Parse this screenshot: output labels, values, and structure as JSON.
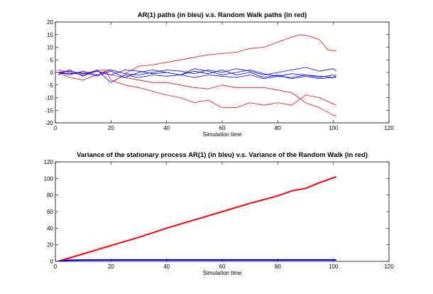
{
  "chart_data": [
    {
      "type": "line",
      "title": "AR(1) paths (in bleu) v.s. Random Walk paths (in red)",
      "xlabel": "Simulation time",
      "ylabel": "",
      "xlim": [
        0,
        120
      ],
      "ylim": [
        -20,
        20
      ],
      "xticks": [
        0,
        20,
        40,
        60,
        80,
        100,
        120
      ],
      "yticks": [
        -20,
        -15,
        -10,
        -5,
        0,
        5,
        10,
        15,
        20
      ],
      "grid": false,
      "series": [
        {
          "color": "#ff0000",
          "x": [
            1,
            5,
            10,
            15,
            20,
            25,
            30,
            35,
            40,
            45,
            50,
            55,
            60,
            65,
            70,
            75,
            80,
            85,
            88,
            91,
            95,
            98,
            101
          ],
          "y": [
            0,
            0.5,
            -0.5,
            0.8,
            1,
            -0.5,
            2.5,
            3,
            4,
            5,
            6,
            7,
            7.5,
            8,
            9.5,
            10,
            12,
            14,
            15,
            14.5,
            13,
            9,
            8.5
          ]
        },
        {
          "color": "#ff0000",
          "x": [
            1,
            5,
            10,
            15,
            18,
            20,
            25,
            30,
            35,
            40,
            45,
            50,
            55,
            60,
            65,
            70,
            75,
            80,
            85,
            90,
            95,
            100,
            101
          ],
          "y": [
            0,
            -2,
            -3,
            -1,
            0.5,
            -3,
            -5,
            -6,
            -7.5,
            -9,
            -10,
            -12,
            -11,
            -14,
            -14,
            -12,
            -13,
            -12,
            -13,
            -9,
            -10,
            -12.5,
            -13
          ]
        },
        {
          "color": "#ff0000",
          "x": [
            1,
            5,
            10,
            15,
            20,
            25,
            30,
            35,
            40,
            45,
            50,
            55,
            60,
            65,
            70,
            75,
            80,
            85,
            90,
            95,
            100,
            101
          ],
          "y": [
            0,
            0.5,
            -0.5,
            0.5,
            -1,
            -2,
            -3,
            -4,
            -4,
            -5,
            -6,
            -6.5,
            -5,
            -6,
            -6,
            -6,
            -7,
            -8,
            -12,
            -14,
            -17,
            -17
          ]
        },
        {
          "color": "#0000ff",
          "x": [
            1,
            5,
            10,
            15,
            20,
            25,
            30,
            35,
            40,
            45,
            50,
            55,
            60,
            65,
            70,
            75,
            80,
            85,
            90,
            95,
            100,
            101
          ],
          "y": [
            0,
            -1,
            0.5,
            -1,
            1,
            -0.5,
            -1,
            0,
            1,
            0.5,
            -0.5,
            1,
            0,
            1.5,
            0.5,
            -1,
            0,
            1,
            2,
            0.5,
            1.5,
            0.5
          ]
        },
        {
          "color": "#0000ff",
          "x": [
            1,
            5,
            10,
            15,
            20,
            25,
            30,
            35,
            40,
            45,
            50,
            55,
            60,
            65,
            70,
            75,
            80,
            85,
            90,
            95,
            100,
            101
          ],
          "y": [
            1,
            0,
            -1,
            0.5,
            -1,
            1,
            0.5,
            -0.5,
            0,
            -1,
            1.5,
            0.5,
            -1,
            0,
            1,
            -0.5,
            -1.5,
            -0.5,
            -1,
            -2,
            -1,
            -2
          ]
        },
        {
          "color": "#0000ff",
          "x": [
            1,
            5,
            10,
            15,
            20,
            25,
            30,
            35,
            40,
            45,
            50,
            55,
            60,
            65,
            70,
            75,
            80,
            85,
            90,
            95,
            100,
            101
          ],
          "y": [
            -1,
            1,
            -1.5,
            1,
            -4,
            -1,
            -2,
            -1,
            -1.5,
            -1,
            -2,
            -1,
            -1.5,
            -2,
            -1,
            -2.5,
            -1.5,
            -2,
            -1,
            -1.5,
            -2,
            -1
          ]
        },
        {
          "color": "#0000ff",
          "x": [
            1,
            5,
            10,
            15,
            20,
            25,
            30,
            35,
            40,
            45,
            50,
            55,
            60,
            65,
            70,
            75,
            80,
            85,
            90,
            95,
            100,
            101
          ],
          "y": [
            0,
            -0.5,
            0,
            -1.5,
            0.5,
            -2,
            0,
            1,
            0,
            -1,
            0.5,
            -0.5,
            1,
            -1,
            0,
            -2,
            -1,
            -2.5,
            -1.5,
            -2.5,
            -2,
            -2
          ]
        }
      ]
    },
    {
      "type": "line",
      "title": "Variance of the stationary process AR(1) (in bleu) v.s. Variance of the Random Walk (in red)",
      "xlabel": "Simulation time",
      "ylabel": "",
      "xlim": [
        0,
        120
      ],
      "ylim": [
        0,
        120
      ],
      "xticks": [
        0,
        20,
        40,
        60,
        80,
        100,
        120
      ],
      "yticks": [
        0,
        20,
        40,
        60,
        80,
        100,
        120
      ],
      "grid": false,
      "series": [
        {
          "color": "#ff0000",
          "x": [
            1,
            10,
            20,
            30,
            40,
            50,
            60,
            70,
            80,
            85,
            90,
            95,
            101
          ],
          "y": [
            0,
            9,
            19,
            29,
            40,
            50,
            60,
            70,
            79,
            85,
            88,
            95,
            102
          ]
        },
        {
          "color": "#0000ff",
          "x": [
            1,
            5,
            10,
            20,
            40,
            60,
            80,
            101
          ],
          "y": [
            0,
            1.4,
            1.6,
            1.7,
            1.7,
            1.7,
            1.7,
            1.7
          ]
        }
      ]
    }
  ]
}
